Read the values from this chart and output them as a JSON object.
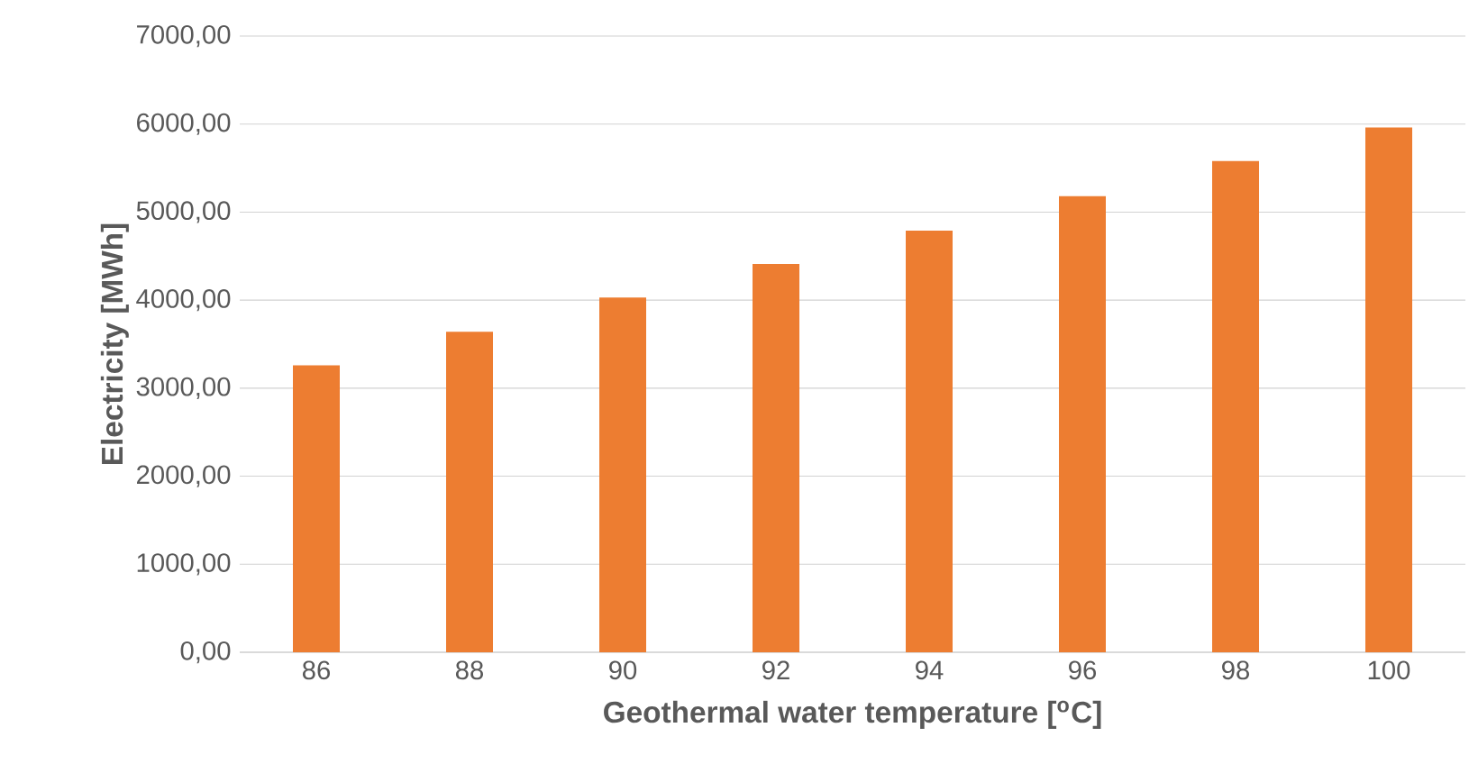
{
  "chart_data": {
    "type": "bar",
    "xlabel": "Geothermal water temperature [$^{o}$C]",
    "ylabel": "Electricity [MWh]",
    "categories": [
      "86",
      "88",
      "90",
      "92",
      "94",
      "96",
      "98",
      "100"
    ],
    "values": [
      3260,
      3640,
      4030,
      4410,
      4790,
      5180,
      5580,
      5960
    ],
    "color": "#ed7d31",
    "ylim": [
      0,
      7000
    ],
    "yticks": [
      {
        "value": 0,
        "label": "0,00"
      },
      {
        "value": 1000,
        "label": "1000,00"
      },
      {
        "value": 2000,
        "label": "2000,00"
      },
      {
        "value": 3000,
        "label": "3000,00"
      },
      {
        "value": 4000,
        "label": "4000,00"
      },
      {
        "value": 5000,
        "label": "5000,00"
      },
      {
        "value": 6000,
        "label": "6000,00"
      },
      {
        "value": 7000,
        "label": "7000,00"
      }
    ],
    "grid": "y"
  }
}
